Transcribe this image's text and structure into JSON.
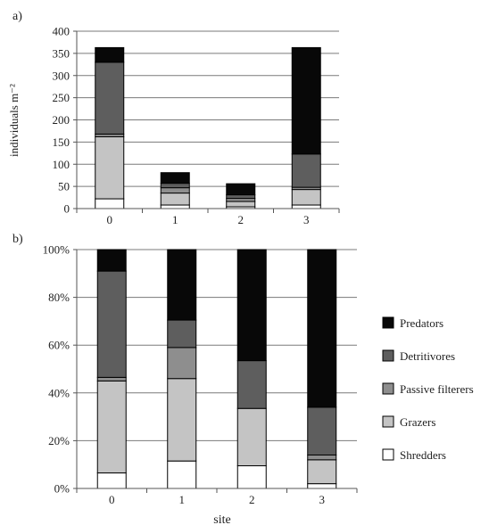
{
  "chart_data": [
    {
      "panel_label": "a)",
      "type": "bar",
      "stacked": true,
      "categories": [
        "0",
        "1",
        "2",
        "3"
      ],
      "ylabel": "individuals m⁻²",
      "ylim": [
        0,
        400
      ],
      "yticks": [
        "0",
        "50",
        "100",
        "150",
        "200",
        "250",
        "300",
        "350",
        "400"
      ],
      "grid": true,
      "series": [
        {
          "name": "Shredders",
          "values": [
            22,
            8,
            4,
            8
          ]
        },
        {
          "name": "Grazers",
          "values": [
            140,
            27,
            12,
            35
          ]
        },
        {
          "name": "Passive filterers",
          "values": [
            6,
            12,
            7,
            5
          ]
        },
        {
          "name": "Detritivores",
          "values": [
            162,
            10,
            8,
            75
          ]
        },
        {
          "name": "Predators",
          "values": [
            33,
            24,
            25,
            240
          ]
        }
      ]
    },
    {
      "panel_label": "b)",
      "type": "bar",
      "stacked": true,
      "categories": [
        "0",
        "1",
        "2",
        "3"
      ],
      "xlabel": "site",
      "ylim": [
        0,
        100
      ],
      "yticks": [
        "0%",
        "20%",
        "40%",
        "60%",
        "80%",
        "100%"
      ],
      "grid": true,
      "legend_position": "right",
      "series": [
        {
          "name": "Shredders",
          "values": [
            6.5,
            11.5,
            9.5,
            2
          ]
        },
        {
          "name": "Grazers",
          "values": [
            38.5,
            34.5,
            24,
            10
          ]
        },
        {
          "name": "Passive filterers",
          "values": [
            1.5,
            13,
            0,
            2
          ]
        },
        {
          "name": "Detritivores",
          "values": [
            44.5,
            11.5,
            20,
            20
          ]
        },
        {
          "name": "Predators",
          "values": [
            9,
            29.5,
            46.5,
            66
          ]
        }
      ]
    }
  ],
  "colors": {
    "Shredders": "#ffffff",
    "Grazers": "#c4c4c4",
    "Passive filterers": "#8e8e8e",
    "Detritivores": "#5e5e5e",
    "Predators": "#080808"
  },
  "legend": [
    {
      "name": "Predators"
    },
    {
      "name": "Detritivores"
    },
    {
      "name": "Passive filterers"
    },
    {
      "name": "Grazers"
    },
    {
      "name": "Shredders"
    }
  ]
}
